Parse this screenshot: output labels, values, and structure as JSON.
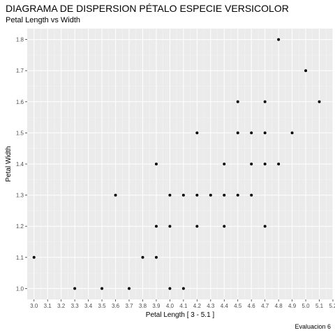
{
  "chart_data": {
    "type": "scatter",
    "title": "DIAGRAMA DE DISPERSION PÉTALO ESPECIE VERSICOLOR",
    "subtitle": "Petal Length vs Width",
    "xlabel": "Petal Length [ 3 - 5.1 ]",
    "ylabel": "Petal Width",
    "caption": "Evaluacion 6",
    "xlim": [
      2.95,
      5.2
    ],
    "ylim": [
      0.965,
      1.835
    ],
    "x_ticks": [
      "3.0",
      "3.1",
      "3.2",
      "3.3",
      "3.4",
      "3.5",
      "3.6",
      "3.7",
      "3.8",
      "3.9",
      "4.0",
      "4.1",
      "4.2",
      "4.3",
      "4.4",
      "4.5",
      "4.6",
      "4.7",
      "4.8",
      "4.9",
      "5.0",
      "5.1",
      "5.2"
    ],
    "y_ticks": [
      "1.0",
      "1.1",
      "1.2",
      "1.3",
      "1.4",
      "1.5",
      "1.6",
      "1.7",
      "1.8"
    ],
    "grid": true,
    "points": [
      {
        "x": 3.0,
        "y": 1.1
      },
      {
        "x": 3.3,
        "y": 1.0
      },
      {
        "x": 3.5,
        "y": 1.0
      },
      {
        "x": 3.7,
        "y": 1.0
      },
      {
        "x": 3.6,
        "y": 1.3
      },
      {
        "x": 3.8,
        "y": 1.1
      },
      {
        "x": 3.9,
        "y": 1.1
      },
      {
        "x": 3.9,
        "y": 1.2
      },
      {
        "x": 3.9,
        "y": 1.4
      },
      {
        "x": 4.0,
        "y": 1.0
      },
      {
        "x": 4.0,
        "y": 1.2
      },
      {
        "x": 4.0,
        "y": 1.3
      },
      {
        "x": 4.1,
        "y": 1.0
      },
      {
        "x": 4.1,
        "y": 1.3
      },
      {
        "x": 4.2,
        "y": 1.2
      },
      {
        "x": 4.2,
        "y": 1.3
      },
      {
        "x": 4.2,
        "y": 1.5
      },
      {
        "x": 4.3,
        "y": 1.3
      },
      {
        "x": 4.4,
        "y": 1.2
      },
      {
        "x": 4.4,
        "y": 1.3
      },
      {
        "x": 4.4,
        "y": 1.4
      },
      {
        "x": 4.5,
        "y": 1.3
      },
      {
        "x": 4.5,
        "y": 1.5
      },
      {
        "x": 4.5,
        "y": 1.6
      },
      {
        "x": 4.6,
        "y": 1.3
      },
      {
        "x": 4.6,
        "y": 1.4
      },
      {
        "x": 4.6,
        "y": 1.5
      },
      {
        "x": 4.7,
        "y": 1.2
      },
      {
        "x": 4.7,
        "y": 1.4
      },
      {
        "x": 4.7,
        "y": 1.5
      },
      {
        "x": 4.7,
        "y": 1.6
      },
      {
        "x": 4.8,
        "y": 1.4
      },
      {
        "x": 4.8,
        "y": 1.8
      },
      {
        "x": 4.9,
        "y": 1.5
      },
      {
        "x": 5.0,
        "y": 1.7
      },
      {
        "x": 5.1,
        "y": 1.6
      }
    ]
  },
  "colors": {
    "panel_background": "#ebebeb",
    "grid_major": "#ffffff",
    "point": "#000000",
    "tick_text": "#4d4d4d",
    "tick_mark": "#333333"
  }
}
